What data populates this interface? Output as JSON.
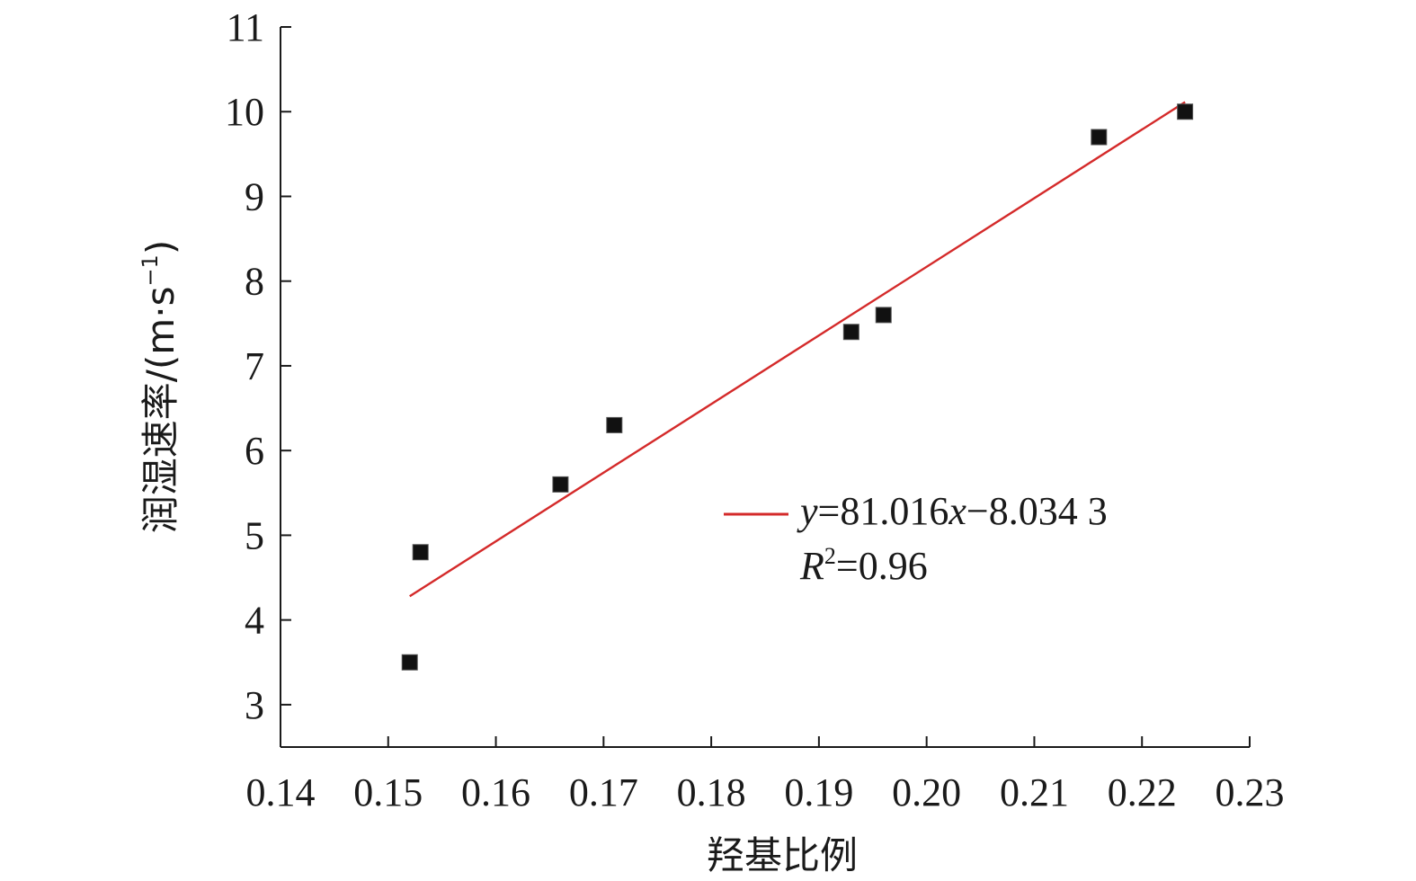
{
  "chart_data": {
    "type": "scatter",
    "title": "",
    "xlabel": "羟基比例",
    "ylabel_main": "润湿速率/(m·s",
    "ylabel_sup": "−1",
    "ylabel_close": ")",
    "xlim": [
      0.14,
      0.23
    ],
    "ylim": [
      2.5,
      11
    ],
    "x_ticks": [
      0.14,
      0.15,
      0.16,
      0.17,
      0.18,
      0.19,
      0.2,
      0.21,
      0.22,
      0.23
    ],
    "x_tick_labels": [
      "0.14",
      "0.15",
      "0.16",
      "0.17",
      "0.18",
      "0.19",
      "0.20",
      "0.21",
      "0.22",
      "0.23"
    ],
    "y_ticks": [
      3,
      4,
      5,
      6,
      7,
      8,
      9,
      10,
      11
    ],
    "y_tick_labels": [
      "3",
      "4",
      "5",
      "6",
      "7",
      "8",
      "9",
      "10",
      "11"
    ],
    "points": [
      {
        "x": 0.152,
        "y": 3.5
      },
      {
        "x": 0.153,
        "y": 4.8
      },
      {
        "x": 0.166,
        "y": 5.6
      },
      {
        "x": 0.171,
        "y": 6.3
      },
      {
        "x": 0.193,
        "y": 7.4
      },
      {
        "x": 0.196,
        "y": 7.6
      },
      {
        "x": 0.216,
        "y": 9.7
      },
      {
        "x": 0.224,
        "y": 10.0
      }
    ],
    "fit": {
      "slope": 81.016,
      "intercept": -8.0343,
      "x_range": [
        0.152,
        0.224
      ],
      "color": "#d42a2a",
      "eq_y": "y",
      "eq_rest": "=81.016",
      "eq_x": "x",
      "eq_tail": "−8.034 3",
      "r2_R": "R",
      "r2_sup": "2",
      "r2_tail": "=0.96"
    },
    "grid": false,
    "legend_position": "center-right",
    "point_color": "#111111"
  }
}
